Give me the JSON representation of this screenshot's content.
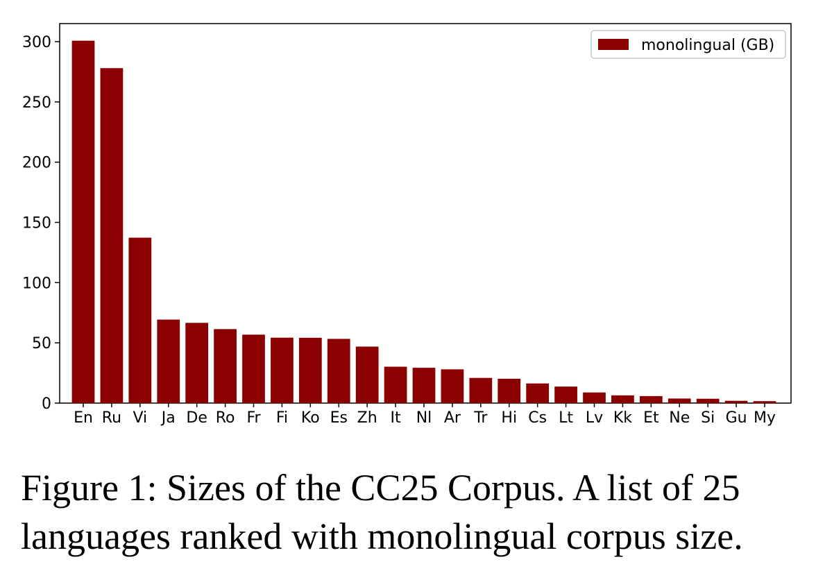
{
  "colors": {
    "bar": "#8b0000",
    "axis": "#000000",
    "background": "#ffffff"
  },
  "chart_data": {
    "type": "bar",
    "title": "",
    "xlabel": "",
    "ylabel": "",
    "categories": [
      "En",
      "Ru",
      "Vi",
      "Ja",
      "De",
      "Ro",
      "Fr",
      "Fi",
      "Ko",
      "Es",
      "Zh",
      "It",
      "Nl",
      "Ar",
      "Tr",
      "Hi",
      "Cs",
      "Lt",
      "Lv",
      "Kk",
      "Et",
      "Ne",
      "Si",
      "Gu",
      "My"
    ],
    "series": [
      {
        "name": "monolingual (GB)",
        "values": [
          300.8,
          278.0,
          137.3,
          69.3,
          66.6,
          61.4,
          56.8,
          54.3,
          54.2,
          53.3,
          46.9,
          30.2,
          29.3,
          28.0,
          20.9,
          20.2,
          16.3,
          13.7,
          8.8,
          6.4,
          5.8,
          3.8,
          3.6,
          1.9,
          1.6
        ]
      }
    ],
    "yticks": [
      0,
      50,
      100,
      150,
      200,
      250,
      300
    ],
    "ylim": [
      0,
      315
    ],
    "grid": false,
    "legend_position": "top-right"
  },
  "caption": {
    "line1": "Figure 1: Sizes of the CC25 Corpus. A list of 25",
    "line2": "languages ranked with monolingual corpus size."
  }
}
